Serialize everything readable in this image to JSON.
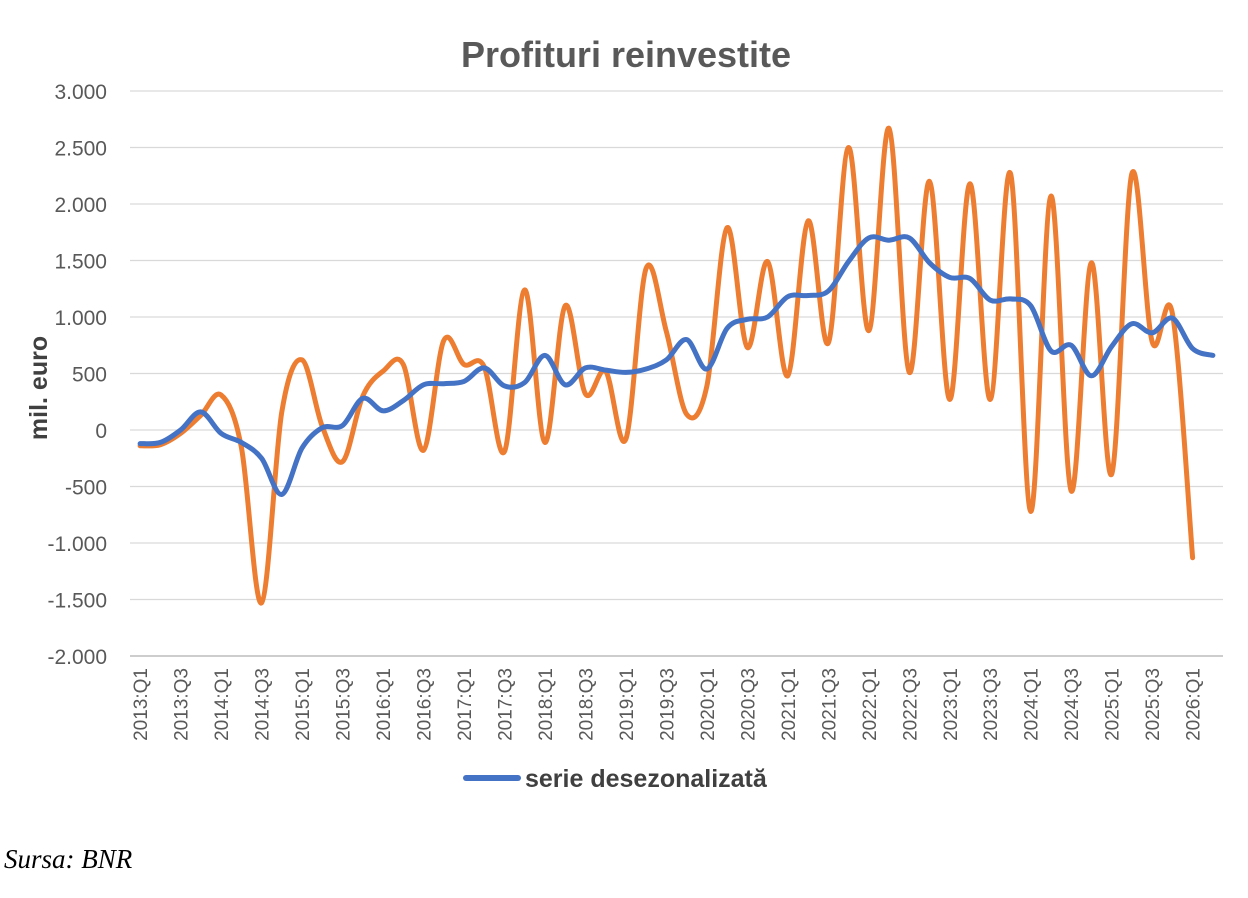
{
  "chart_data": {
    "type": "line",
    "title": "Profituri reinvestite",
    "ylabel": "mil. euro",
    "xlabel": "",
    "ylim": [
      -2000,
      3000
    ],
    "yticks": [
      -2000,
      -1500,
      -1000,
      -500,
      0,
      500,
      1000,
      1500,
      2000,
      2500,
      3000
    ],
    "ytick_labels": [
      "-2.000",
      "-1.500",
      "-1.000",
      "-500",
      "0",
      "500",
      "1.000",
      "1.500",
      "2.000",
      "2.500",
      "3.000"
    ],
    "grid": true,
    "legend_position": "bottom",
    "x": [
      "2013:Q1",
      "2013:Q2",
      "2013:Q3",
      "2013:Q4",
      "2014:Q1",
      "2014:Q2",
      "2014:Q3",
      "2014:Q4",
      "2015:Q1",
      "2015:Q2",
      "2015:Q3",
      "2015:Q4",
      "2016:Q1",
      "2016:Q2",
      "2016:Q3",
      "2016:Q4",
      "2017:Q1",
      "2017:Q2",
      "2017:Q3",
      "2017:Q4",
      "2018:Q1",
      "2018:Q2",
      "2018:Q3",
      "2018:Q4",
      "2019:Q1",
      "2019:Q2",
      "2019:Q3",
      "2019:Q4",
      "2020:Q1",
      "2020:Q2",
      "2020:Q3",
      "2020:Q4",
      "2021:Q1",
      "2021:Q2",
      "2021:Q3",
      "2021:Q4",
      "2022:Q1",
      "2022:Q2",
      "2022:Q3",
      "2022:Q4",
      "2023:Q1",
      "2023:Q2",
      "2023:Q3",
      "2023:Q4",
      "2024:Q1",
      "2024:Q2",
      "2024:Q3",
      "2024:Q4",
      "2025:Q1",
      "2025:Q2",
      "2025:Q3",
      "2025:Q4",
      "2026:Q1",
      "2026:Q2"
    ],
    "x_tick_labels": [
      "2013:Q1",
      "2013:Q3",
      "2014:Q1",
      "2014:Q3",
      "2015:Q1",
      "2015:Q3",
      "2016:Q1",
      "2016:Q3",
      "2017:Q1",
      "2017:Q3",
      "2018:Q1",
      "2018:Q3",
      "2019:Q1",
      "2019:Q3",
      "2020:Q1",
      "2020:Q3",
      "2021:Q1",
      "2021:Q3",
      "2022:Q1",
      "2022:Q3",
      "2023:Q1",
      "2023:Q3",
      "2024:Q1",
      "2024:Q3",
      "2025:Q1",
      "2025:Q3",
      "2026:Q1"
    ],
    "series": [
      {
        "name": "",
        "color": "#ED7D31",
        "in_legend": false,
        "values": [
          -140,
          -130,
          -30,
          130,
          310,
          -150,
          -1530,
          160,
          620,
          30,
          -280,
          300,
          520,
          580,
          -180,
          790,
          580,
          560,
          -190,
          1240,
          -110,
          1100,
          320,
          520,
          -80,
          1430,
          870,
          140,
          390,
          1790,
          730,
          1490,
          480,
          1850,
          770,
          2500,
          880,
          2670,
          510,
          2200,
          270,
          2180,
          270,
          2270,
          -720,
          2070,
          -540,
          1480,
          -390,
          2270,
          780,
          1030,
          -1130,
          null
        ]
      },
      {
        "name": "serie desezonalizată",
        "color": "#4472C4",
        "in_legend": true,
        "values": [
          -120,
          -110,
          0,
          160,
          -30,
          -110,
          -250,
          -570,
          -160,
          20,
          40,
          280,
          170,
          260,
          400,
          410,
          430,
          550,
          390,
          420,
          660,
          400,
          550,
          530,
          510,
          540,
          620,
          800,
          540,
          900,
          980,
          1000,
          1180,
          1190,
          1230,
          1490,
          1700,
          1680,
          1700,
          1480,
          1350,
          1340,
          1150,
          1160,
          1100,
          700,
          750,
          480,
          740,
          940,
          860,
          990,
          720,
          660
        ]
      }
    ]
  },
  "source": "Sursa: BNR"
}
